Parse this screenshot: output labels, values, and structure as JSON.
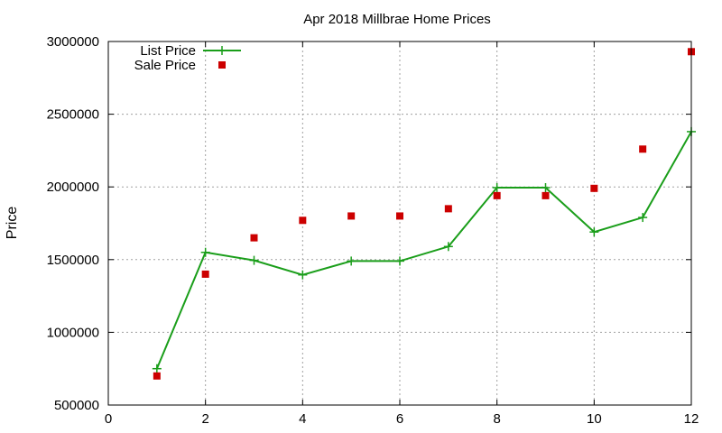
{
  "chart_data": {
    "type": "line",
    "title": "Apr 2018 Millbrae Home Prices",
    "xlabel": "",
    "ylabel": "Price",
    "xlim": [
      0,
      12
    ],
    "ylim": [
      500000,
      3000000
    ],
    "xticks": [
      "0",
      "2",
      "4",
      "6",
      "8",
      "10",
      "12"
    ],
    "yticks": [
      "500000",
      "1000000",
      "1500000",
      "2000000",
      "2500000",
      "3000000"
    ],
    "grid": true,
    "legend_position": "top-left",
    "x": [
      1,
      2,
      3,
      4,
      5,
      6,
      7,
      8,
      9,
      10,
      11,
      12
    ],
    "series": [
      {
        "name": "List Price",
        "style": "line+cross",
        "color": "#1a9e1a",
        "values": [
          750000,
          1550000,
          1495000,
          1395000,
          1490000,
          1490000,
          1590000,
          1995000,
          1995000,
          1690000,
          1790000,
          2380000
        ]
      },
      {
        "name": "Sale Price",
        "style": "square",
        "color": "#cc0000",
        "values": [
          700000,
          1400000,
          1650000,
          1770000,
          1800000,
          1800000,
          1850000,
          1940000,
          1940000,
          1990000,
          2260000,
          2930000
        ]
      }
    ]
  }
}
